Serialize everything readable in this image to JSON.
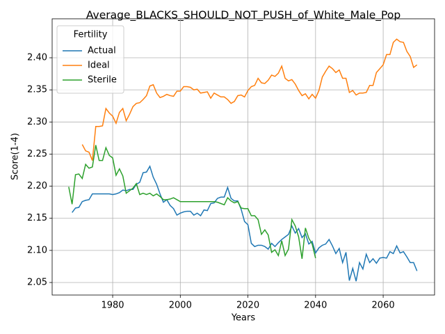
{
  "chart_data": {
    "type": "line",
    "title": "Average_BLACKS_SHOULD_NOT_PUSH_of_White_Male_Pop",
    "x_label": "Years",
    "y_label": "Score(1-4)",
    "legend_title": "Fertility",
    "legend_loc": "upper left",
    "grid": true,
    "xlim": [
      1962.1,
      2075.2
    ],
    "ylim": [
      2.0305,
      2.4607
    ],
    "xticks": [
      1980,
      2000,
      2020,
      2040,
      2060
    ],
    "yticks": [
      2.05,
      {
        "value": 2.1,
        "label": "2.10"
      },
      2.15,
      {
        "value": 2.2,
        "label": "2.20"
      },
      2.25,
      {
        "value": 2.3,
        "label": "2.30"
      },
      2.35,
      {
        "value": 2.4,
        "label": "2.40"
      }
    ],
    "x": [
      1967,
      1968,
      1969,
      1970,
      1971,
      1972,
      1973,
      1974,
      1975,
      1976,
      1977,
      1978,
      1979,
      1980,
      1981,
      1982,
      1983,
      1984,
      1985,
      1986,
      1987,
      1988,
      1989,
      1990,
      1991,
      1992,
      1993,
      1994,
      1995,
      1996,
      1997,
      1998,
      1999,
      2000,
      2001,
      2002,
      2003,
      2004,
      2005,
      2006,
      2007,
      2008,
      2009,
      2010,
      2011,
      2012,
      2013,
      2014,
      2015,
      2016,
      2017,
      2018,
      2019,
      2020,
      2021,
      2022,
      2023,
      2024,
      2025,
      2026,
      2027,
      2028,
      2029,
      2030,
      2031,
      2032,
      2033,
      2034,
      2035,
      2036,
      2037,
      2038,
      2039,
      2040,
      2041,
      2042,
      2043,
      2044,
      2045,
      2046,
      2047,
      2048,
      2049,
      2050,
      2051,
      2052,
      2053,
      2054,
      2055,
      2056,
      2057,
      2058,
      2059,
      2060,
      2061,
      2062,
      2063,
      2064,
      2065,
      2066,
      2067,
      2068,
      2069,
      2070
    ],
    "series": [
      {
        "name": "Actual",
        "color": "#1f77b4",
        "values": [
          null,
          2.159,
          2.166,
          2.167,
          2.176,
          2.178,
          2.179,
          2.188,
          2.188,
          2.188,
          2.188,
          2.188,
          2.188,
          2.187,
          2.188,
          2.19,
          2.194,
          2.193,
          2.195,
          2.195,
          2.203,
          2.206,
          2.221,
          2.222,
          2.231,
          2.214,
          2.203,
          2.188,
          2.175,
          2.179,
          2.17,
          2.165,
          2.155,
          2.158,
          2.16,
          2.161,
          2.161,
          2.155,
          2.158,
          2.154,
          2.163,
          2.162,
          2.173,
          2.174,
          2.181,
          2.183,
          2.183,
          2.198,
          2.181,
          2.177,
          2.177,
          2.164,
          2.145,
          2.14,
          2.111,
          2.106,
          2.108,
          2.108,
          2.106,
          2.102,
          2.111,
          2.106,
          2.112,
          2.117,
          2.121,
          2.125,
          2.138,
          2.127,
          2.134,
          2.12,
          2.126,
          2.11,
          2.114,
          2.096,
          2.104,
          2.108,
          2.11,
          2.117,
          2.107,
          2.095,
          2.103,
          2.081,
          2.097,
          2.053,
          2.072,
          2.052,
          2.081,
          2.071,
          2.094,
          2.081,
          2.087,
          2.08,
          2.088,
          2.089,
          2.088,
          2.098,
          2.095,
          2.107,
          2.096,
          2.098,
          2.09,
          2.081,
          2.081,
          2.068
        ]
      },
      {
        "name": "Ideal",
        "color": "#ff7f0e",
        "values": [
          null,
          null,
          null,
          null,
          2.265,
          2.255,
          2.253,
          2.24,
          2.293,
          2.293,
          2.294,
          2.321,
          2.314,
          2.309,
          2.298,
          2.315,
          2.321,
          2.302,
          2.312,
          2.324,
          2.329,
          2.33,
          2.335,
          2.341,
          2.356,
          2.358,
          2.345,
          2.338,
          2.34,
          2.343,
          2.341,
          2.34,
          2.348,
          2.348,
          2.355,
          2.355,
          2.354,
          2.35,
          2.351,
          2.345,
          2.346,
          2.347,
          2.337,
          2.345,
          2.342,
          2.339,
          2.339,
          2.335,
          2.329,
          2.332,
          2.341,
          2.342,
          2.339,
          2.349,
          2.355,
          2.357,
          2.368,
          2.361,
          2.36,
          2.365,
          2.373,
          2.371,
          2.376,
          2.387,
          2.368,
          2.364,
          2.366,
          2.359,
          2.349,
          2.341,
          2.344,
          2.336,
          2.343,
          2.337,
          2.349,
          2.37,
          2.379,
          2.387,
          2.383,
          2.377,
          2.381,
          2.368,
          2.368,
          2.346,
          2.349,
          2.342,
          2.345,
          2.345,
          2.346,
          2.357,
          2.357,
          2.377,
          2.383,
          2.389,
          2.405,
          2.405,
          2.424,
          2.429,
          2.425,
          2.424,
          2.41,
          2.402,
          2.385,
          2.389
        ]
      },
      {
        "name": "Sterile",
        "color": "#2ca02c",
        "values": [
          2.199,
          2.172,
          2.218,
          2.219,
          2.212,
          2.234,
          2.228,
          2.23,
          2.264,
          2.24,
          2.24,
          2.26,
          2.248,
          2.244,
          2.217,
          2.227,
          2.216,
          2.189,
          2.193,
          2.197,
          2.204,
          2.187,
          2.189,
          2.187,
          2.189,
          2.185,
          2.188,
          2.184,
          2.179,
          2.179,
          2.18,
          2.182,
          2.179,
          2.176,
          2.176,
          2.176,
          2.176,
          2.176,
          2.176,
          2.176,
          2.176,
          2.176,
          2.176,
          2.176,
          2.175,
          2.173,
          2.171,
          2.182,
          2.177,
          2.174,
          2.176,
          2.166,
          2.165,
          2.165,
          2.154,
          2.154,
          2.148,
          2.125,
          2.132,
          2.124,
          2.097,
          2.101,
          2.092,
          2.115,
          2.092,
          2.102,
          2.148,
          2.138,
          2.121,
          2.087,
          2.135,
          2.119,
          2.11,
          2.088,
          null,
          null,
          null,
          null,
          null,
          null,
          null,
          null,
          null,
          null,
          null,
          null,
          null,
          null,
          null,
          null,
          null,
          null,
          null,
          null,
          null,
          null,
          null,
          null,
          null,
          null,
          null,
          null,
          null,
          null
        ]
      }
    ]
  }
}
